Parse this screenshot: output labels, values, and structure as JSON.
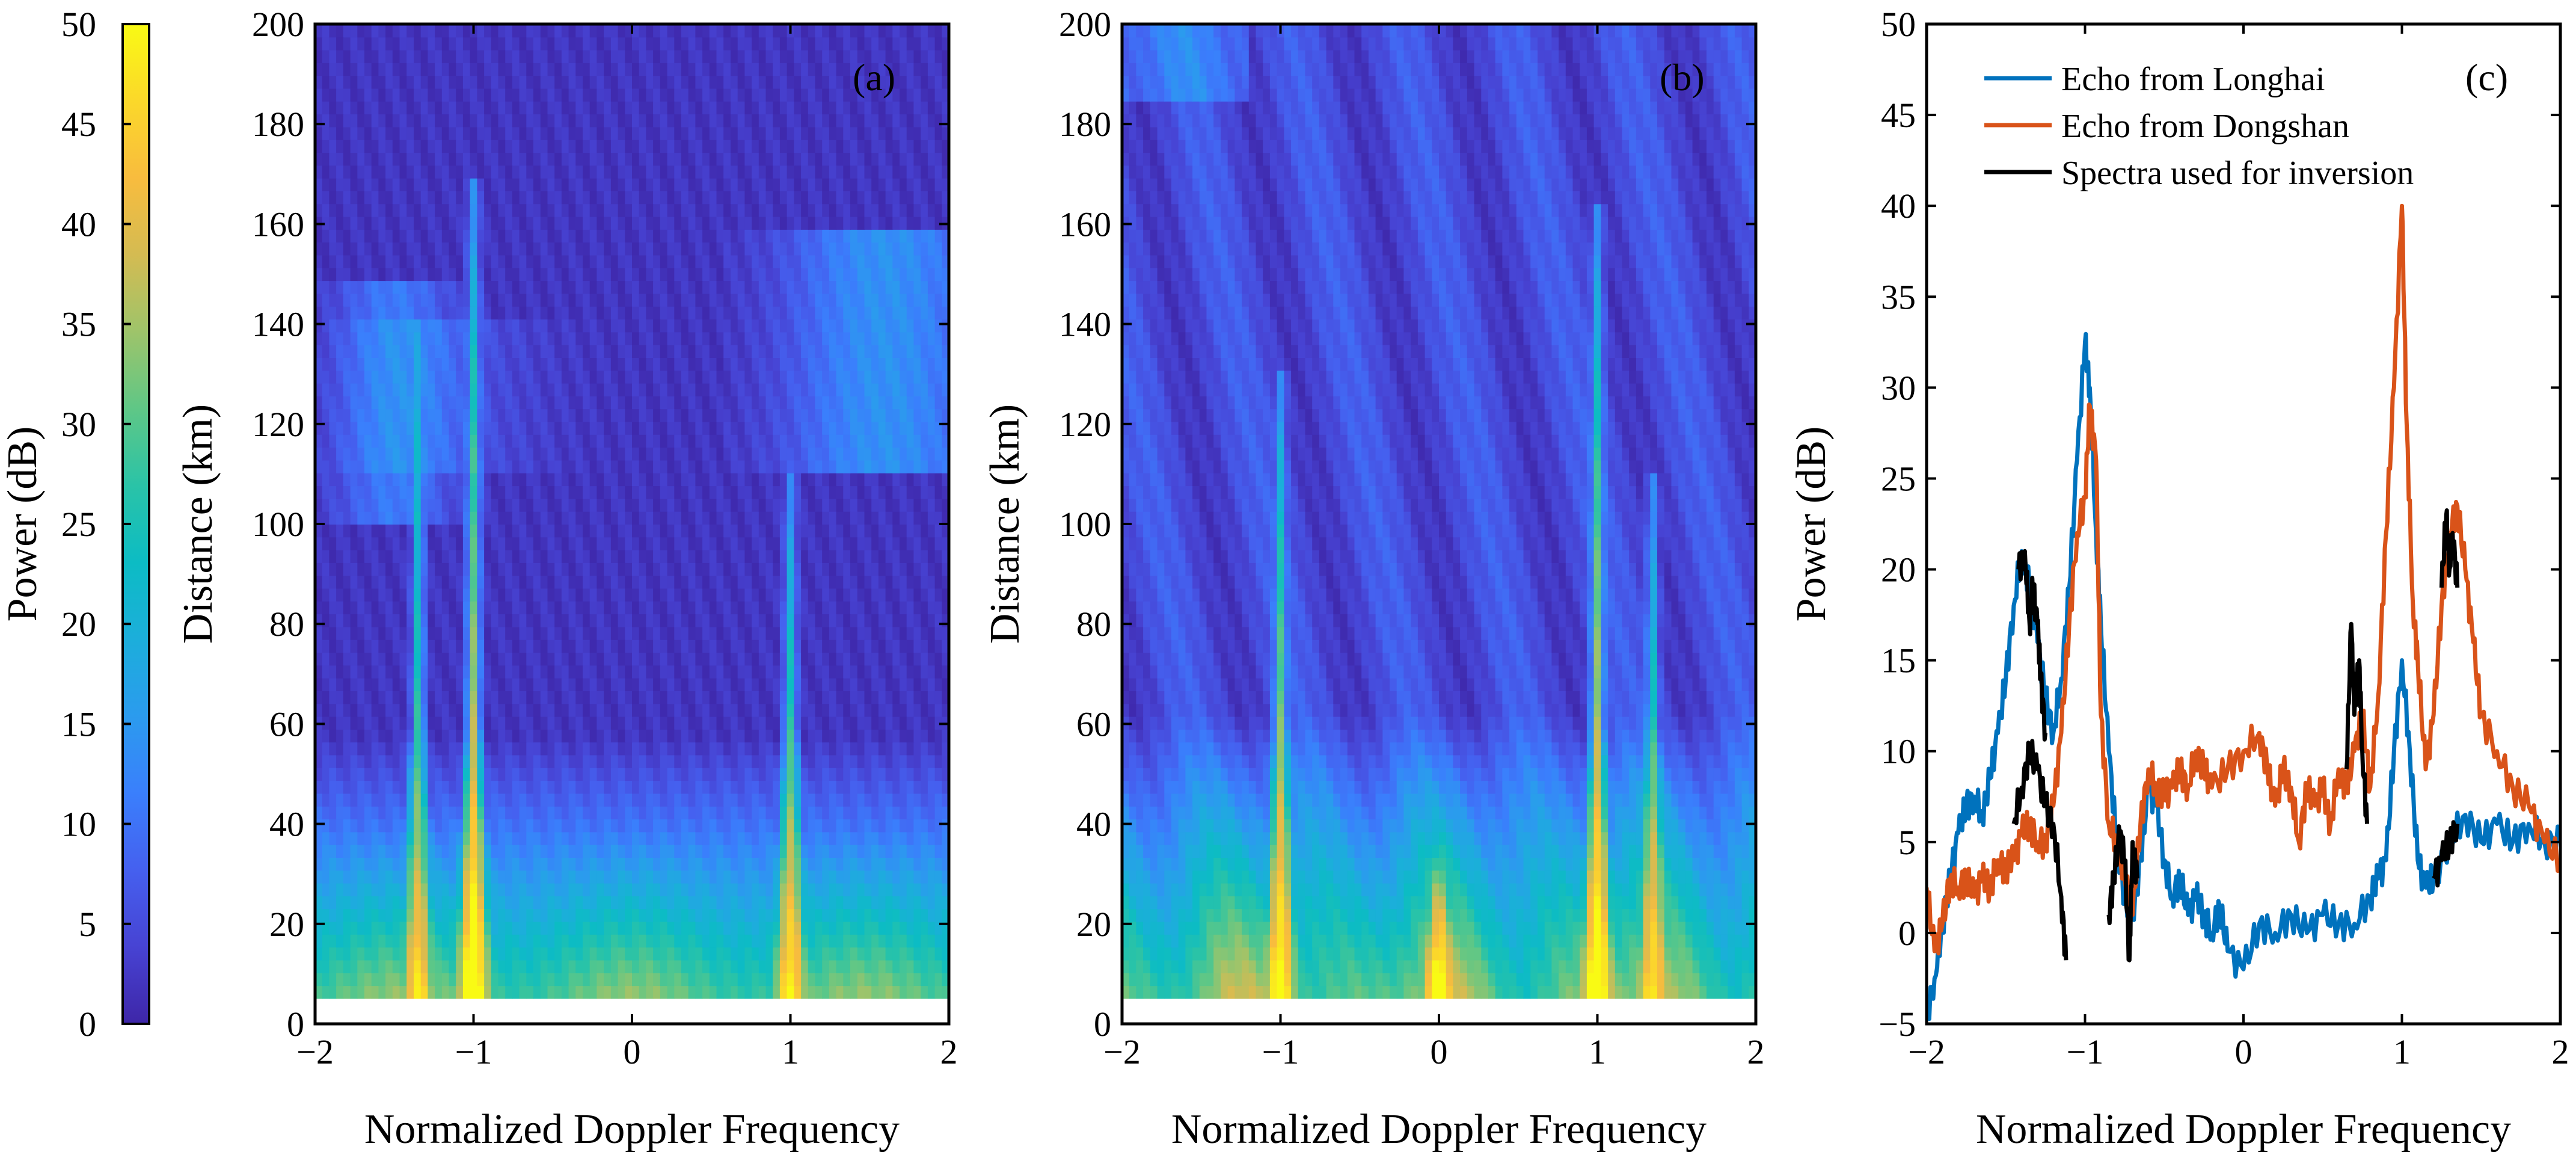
{
  "chart_data": [
    {
      "type": "heatmap",
      "panel_label": "(a)",
      "xlabel": "Normalized Doppler Frequency",
      "ylabel": "Distance (km)",
      "xlim": [
        -2,
        2
      ],
      "ylim": [
        0,
        200
      ],
      "xticks": [
        "−2",
        "−1",
        "0",
        "1",
        "2"
      ],
      "yticks": [
        "0",
        "20",
        "40",
        "60",
        "80",
        "100",
        "120",
        "140",
        "160",
        "180",
        "200"
      ],
      "data_range_km": [
        5,
        200
      ],
      "ridges": [
        {
          "doppler": -1.0,
          "max_range_km": 170,
          "peak_power_db": 48
        },
        {
          "doppler": -1.35,
          "max_range_km": 140,
          "peak_power_db": 38
        },
        {
          "doppler": 1.0,
          "max_range_km": 110,
          "peak_power_db": 42
        }
      ],
      "notes_power_db": {
        "background": 2,
        "far_range_patch_positive_doppler": 12
      }
    },
    {
      "type": "heatmap",
      "panel_label": "(b)",
      "xlabel": "Normalized Doppler Frequency",
      "ylabel": "Distance (km)",
      "xlim": [
        -2,
        2
      ],
      "ylim": [
        0,
        200
      ],
      "xticks": [
        "−2",
        "−1",
        "0",
        "1",
        "2"
      ],
      "yticks": [
        "0",
        "20",
        "40",
        "60",
        "80",
        "100",
        "120",
        "140",
        "160",
        "180",
        "200"
      ],
      "data_range_km": [
        5,
        200
      ],
      "ridges": [
        {
          "doppler": -1.0,
          "max_range_km": 130,
          "peak_power_db": 44
        },
        {
          "doppler": 1.0,
          "max_range_km": 165,
          "peak_power_db": 46
        },
        {
          "doppler": 1.35,
          "max_range_km": 110,
          "peak_power_db": 38
        },
        {
          "doppler": 0.0,
          "max_range_km": 40,
          "peak_power_db": 48
        }
      ],
      "notes_power_db": {
        "background": 5
      }
    },
    {
      "type": "line",
      "panel_label": "(c)",
      "xlabel": "Normalized Doppler Frequency",
      "ylabel": "Power (dB)",
      "xlim": [
        -2,
        2
      ],
      "ylim": [
        -5,
        50
      ],
      "xticks": [
        "−2",
        "−1",
        "0",
        "1",
        "2"
      ],
      "yticks": [
        "−5",
        "0",
        "5",
        "10",
        "15",
        "20",
        "25",
        "30",
        "35",
        "40",
        "45",
        "50"
      ],
      "legend_position": "top-left",
      "series": [
        {
          "name": "Echo from Longhai",
          "color": "#0072BD",
          "points": [
            [
              -2.0,
              -4.5
            ],
            [
              -1.95,
              -2.5
            ],
            [
              -1.9,
              0.5
            ],
            [
              -1.85,
              3
            ],
            [
              -1.8,
              5.5
            ],
            [
              -1.75,
              7
            ],
            [
              -1.7,
              7.5
            ],
            [
              -1.65,
              6.5
            ],
            [
              -1.6,
              8.5
            ],
            [
              -1.55,
              11
            ],
            [
              -1.5,
              14
            ],
            [
              -1.45,
              18
            ],
            [
              -1.4,
              21
            ],
            [
              -1.35,
              19
            ],
            [
              -1.3,
              16
            ],
            [
              -1.25,
              13
            ],
            [
              -1.2,
              11
            ],
            [
              -1.15,
              14
            ],
            [
              -1.1,
              19
            ],
            [
              -1.05,
              26
            ],
            [
              -1.0,
              32.5
            ],
            [
              -0.97,
              30
            ],
            [
              -0.93,
              22
            ],
            [
              -0.9,
              17
            ],
            [
              -0.85,
              10
            ],
            [
              -0.8,
              5
            ],
            [
              -0.75,
              2
            ],
            [
              -0.7,
              1
            ],
            [
              -0.65,
              4
            ],
            [
              -0.6,
              8
            ],
            [
              -0.55,
              7
            ],
            [
              -0.5,
              4
            ],
            [
              -0.45,
              2
            ],
            [
              -0.4,
              3
            ],
            [
              -0.35,
              1
            ],
            [
              -0.3,
              2
            ],
            [
              -0.25,
              1
            ],
            [
              -0.2,
              0
            ],
            [
              -0.15,
              1.5
            ],
            [
              -0.1,
              -1
            ],
            [
              0.0,
              -2
            ],
            [
              0.1,
              0.5
            ],
            [
              0.2,
              0
            ],
            [
              0.3,
              1
            ],
            [
              0.4,
              0
            ],
            [
              0.5,
              1
            ],
            [
              0.6,
              0.5
            ],
            [
              0.7,
              0.5
            ],
            [
              0.8,
              2
            ],
            [
              0.85,
              3
            ],
            [
              0.9,
              4
            ],
            [
              0.95,
              10
            ],
            [
              1.0,
              15
            ],
            [
              1.05,
              10
            ],
            [
              1.1,
              4
            ],
            [
              1.15,
              2.5
            ],
            [
              1.2,
              3
            ],
            [
              1.3,
              5
            ],
            [
              1.4,
              6.5
            ],
            [
              1.5,
              5
            ],
            [
              1.6,
              6
            ],
            [
              1.7,
              5
            ],
            [
              1.8,
              6
            ],
            [
              1.9,
              5
            ],
            [
              2.0,
              5
            ]
          ]
        },
        {
          "name": "Echo from Dongshan",
          "color": "#D95319",
          "points": [
            [
              -2.0,
              2.5
            ],
            [
              -1.95,
              -1
            ],
            [
              -1.9,
              0.5
            ],
            [
              -1.85,
              3
            ],
            [
              -1.8,
              2.5
            ],
            [
              -1.75,
              3
            ],
            [
              -1.7,
              2
            ],
            [
              -1.65,
              3
            ],
            [
              -1.6,
              2.5
            ],
            [
              -1.55,
              4
            ],
            [
              -1.5,
              3.5
            ],
            [
              -1.45,
              4
            ],
            [
              -1.4,
              5.5
            ],
            [
              -1.35,
              6
            ],
            [
              -1.3,
              5
            ],
            [
              -1.25,
              5
            ],
            [
              -1.2,
              7
            ],
            [
              -1.15,
              11
            ],
            [
              -1.1,
              17
            ],
            [
              -1.05,
              22
            ],
            [
              -1.0,
              24
            ],
            [
              -0.97,
              29
            ],
            [
              -0.93,
              26
            ],
            [
              -0.9,
              12
            ],
            [
              -0.85,
              6
            ],
            [
              -0.8,
              5
            ],
            [
              -0.75,
              3
            ],
            [
              -0.7,
              1
            ],
            [
              -0.65,
              6
            ],
            [
              -0.6,
              9
            ],
            [
              -0.55,
              8
            ],
            [
              -0.5,
              7.5
            ],
            [
              -0.45,
              8
            ],
            [
              -0.4,
              9
            ],
            [
              -0.35,
              8
            ],
            [
              -0.3,
              10
            ],
            [
              -0.25,
              9
            ],
            [
              -0.2,
              8
            ],
            [
              -0.1,
              9
            ],
            [
              0.0,
              10
            ],
            [
              0.1,
              11
            ],
            [
              0.15,
              9
            ],
            [
              0.2,
              7
            ],
            [
              0.25,
              9
            ],
            [
              0.3,
              8
            ],
            [
              0.35,
              5
            ],
            [
              0.4,
              8
            ],
            [
              0.45,
              7
            ],
            [
              0.5,
              8
            ],
            [
              0.55,
              6
            ],
            [
              0.6,
              9
            ],
            [
              0.65,
              8
            ],
            [
              0.7,
              10
            ],
            [
              0.75,
              12
            ],
            [
              0.8,
              8
            ],
            [
              0.85,
              13
            ],
            [
              0.9,
              22
            ],
            [
              0.95,
              30
            ],
            [
              1.0,
              40
            ],
            [
              1.03,
              28
            ],
            [
              1.07,
              18
            ],
            [
              1.1,
              15
            ],
            [
              1.15,
              9
            ],
            [
              1.2,
              12
            ],
            [
              1.25,
              18
            ],
            [
              1.3,
              22
            ],
            [
              1.35,
              23.5
            ],
            [
              1.4,
              20
            ],
            [
              1.45,
              16
            ],
            [
              1.5,
              12
            ],
            [
              1.6,
              10
            ],
            [
              1.7,
              8
            ],
            [
              1.8,
              7
            ],
            [
              1.9,
              5
            ],
            [
              2.0,
              4
            ]
          ]
        },
        {
          "name": "Spectra used for inversion",
          "color": "#000000",
          "segments": [
            [
              [
                -1.42,
                20
              ],
              [
                -1.38,
                21
              ],
              [
                -1.35,
                17
              ],
              [
                -1.33,
                19
              ],
              [
                -1.3,
                17
              ],
              [
                -1.28,
                14
              ],
              [
                -1.25,
                11
              ]
            ],
            [
              [
                -1.45,
                6
              ],
              [
                -1.4,
                8
              ],
              [
                -1.35,
                10
              ],
              [
                -1.3,
                9
              ],
              [
                -1.25,
                7
              ],
              [
                -1.2,
                6
              ],
              [
                -1.15,
                2
              ],
              [
                -1.12,
                -1.5
              ]
            ],
            [
              [
                -0.85,
                1
              ],
              [
                -0.82,
                3
              ],
              [
                -0.78,
                5.5
              ],
              [
                -0.75,
                4
              ],
              [
                -0.72,
                -1.5
              ],
              [
                -0.7,
                5
              ],
              [
                -0.67,
                3
              ]
            ],
            [
              [
                0.65,
                9
              ],
              [
                0.68,
                17
              ],
              [
                0.7,
                12
              ],
              [
                0.73,
                15
              ],
              [
                0.75,
                10
              ],
              [
                0.78,
                6
              ]
            ],
            [
              [
                1.2,
                3
              ],
              [
                1.25,
                4
              ],
              [
                1.3,
                5
              ],
              [
                1.35,
                6
              ]
            ],
            [
              [
                1.25,
                19
              ],
              [
                1.28,
                23
              ],
              [
                1.3,
                20
              ],
              [
                1.32,
                22
              ],
              [
                1.35,
                19
              ]
            ]
          ]
        }
      ]
    }
  ],
  "colorbar": {
    "label": "Power (dB)",
    "range": [
      0,
      50
    ],
    "ticks": [
      "0",
      "5",
      "10",
      "15",
      "20",
      "25",
      "30",
      "35",
      "40",
      "45",
      "50"
    ]
  },
  "colormap": [
    "#3E26A8",
    "#4743D3",
    "#4560EF",
    "#3A7FFC",
    "#2B9BEE",
    "#1CAEDB",
    "#0CBCC4",
    "#2AC3A7",
    "#5FC786",
    "#9EC46A",
    "#D4BB52",
    "#F8BC3E",
    "#FBD82A",
    "#F9FA14"
  ]
}
